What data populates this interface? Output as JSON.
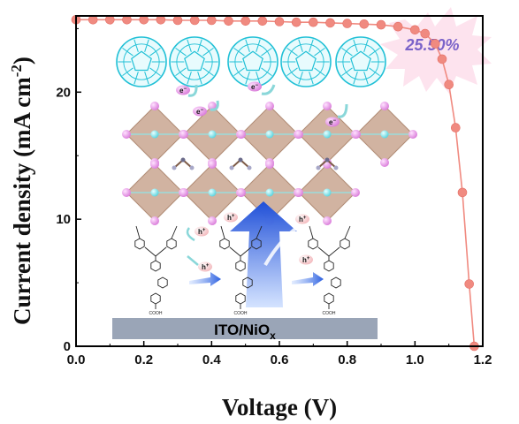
{
  "chart_data": {
    "type": "line",
    "xlabel": "Voltage (V)",
    "ylabel": "Current density (mA cm",
    "ylabel_sup": "-2",
    "ylabel_close": ")",
    "xlim": [
      0.0,
      1.2
    ],
    "ylim": [
      0,
      26
    ],
    "xticks": [
      0.0,
      0.2,
      0.4,
      0.6,
      0.8,
      1.0,
      1.2
    ],
    "xtick_labels": [
      "0.0",
      "0.2",
      "0.4",
      "0.6",
      "0.8",
      "1.0",
      "1.2"
    ],
    "yticks": [
      0,
      10,
      20
    ],
    "ytick_labels": [
      "0",
      "10",
      "20"
    ],
    "grid": false,
    "annotation": "25.50%",
    "series": [
      {
        "color": "#f08a80",
        "x": [
          0.0,
          0.05,
          0.1,
          0.15,
          0.2,
          0.25,
          0.3,
          0.35,
          0.4,
          0.45,
          0.5,
          0.55,
          0.6,
          0.65,
          0.7,
          0.75,
          0.8,
          0.85,
          0.9,
          0.95,
          1.0,
          1.03,
          1.06,
          1.08,
          1.1,
          1.12,
          1.14,
          1.16,
          1.175
        ],
        "y": [
          25.7,
          25.7,
          25.7,
          25.7,
          25.7,
          25.7,
          25.65,
          25.65,
          25.65,
          25.6,
          25.6,
          25.6,
          25.55,
          25.5,
          25.5,
          25.45,
          25.4,
          25.35,
          25.3,
          25.15,
          24.9,
          24.6,
          23.8,
          22.6,
          20.6,
          17.2,
          12.1,
          4.9,
          0.0
        ]
      }
    ]
  },
  "inset": {
    "substrate_label": "ITO/NiO",
    "substrate_sub": "x",
    "electron_label": "e",
    "hole_label": "h",
    "charge_sup": "−",
    "hole_sup": "+",
    "acid_label": "COOH"
  }
}
